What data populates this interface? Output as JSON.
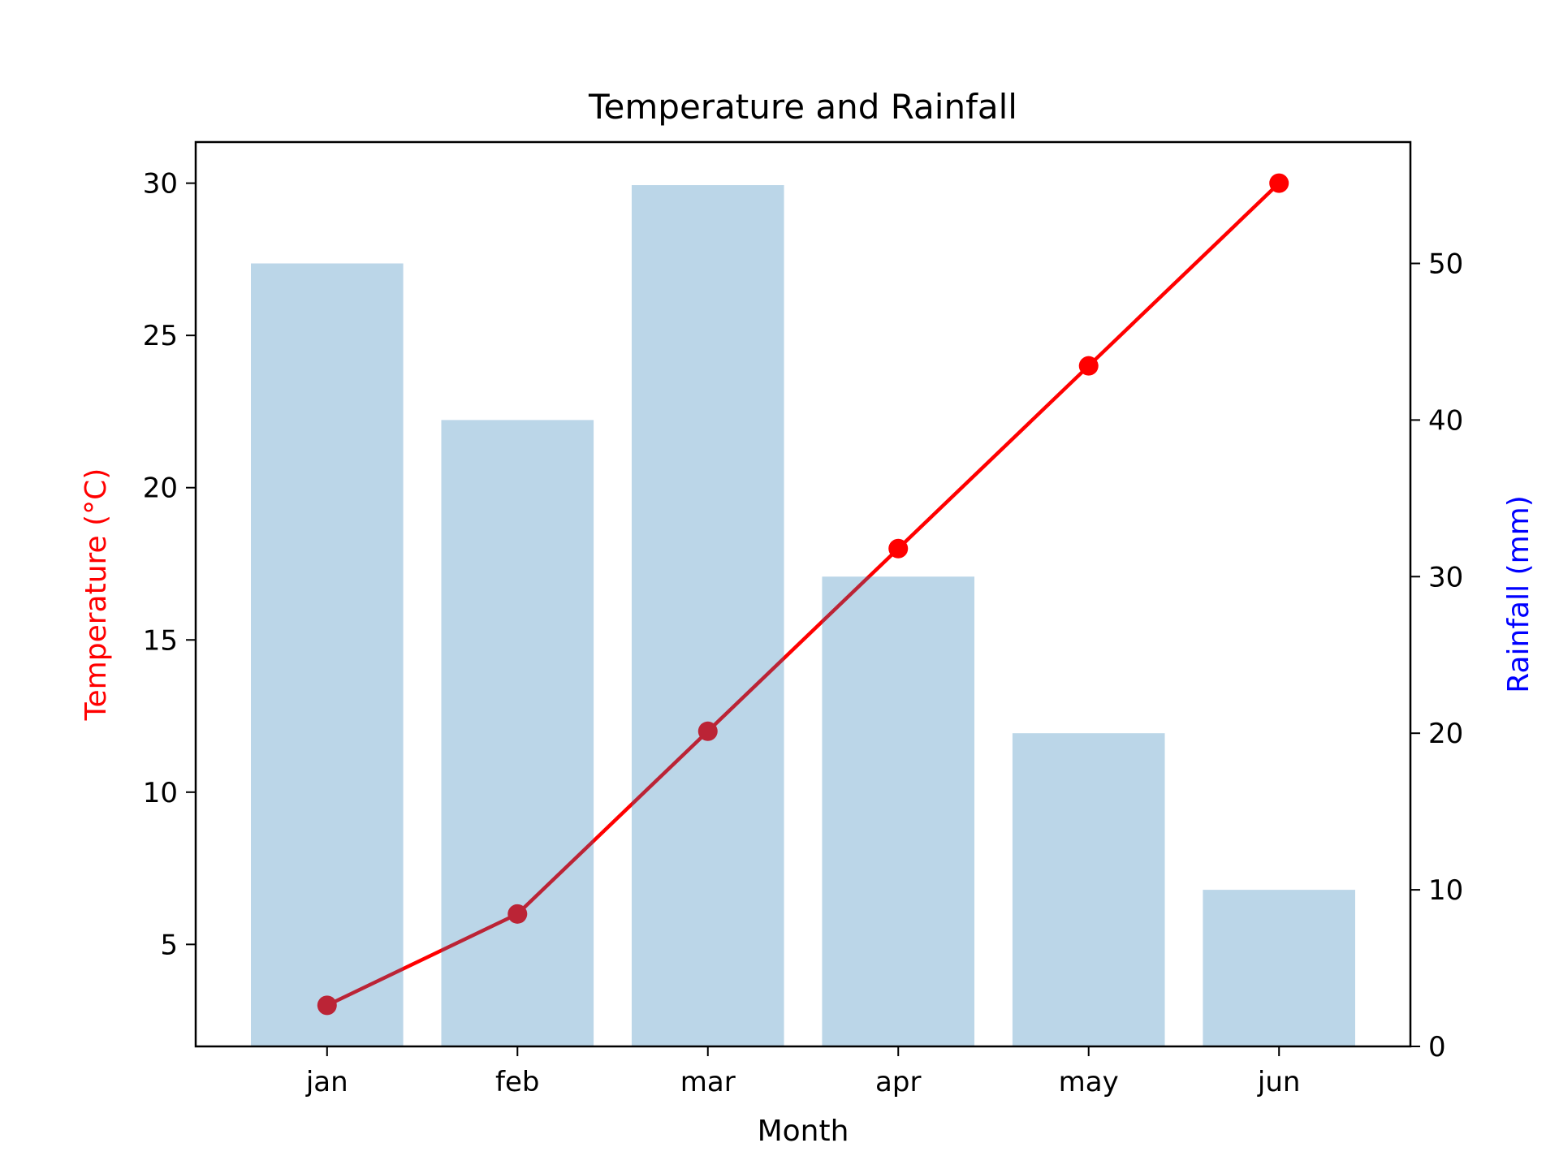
{
  "chart_data": {
    "type": "bar+line",
    "title": "Temperature and Rainfall",
    "xlabel": "Month",
    "categories": [
      "jan",
      "feb",
      "mar",
      "apr",
      "may",
      "jun"
    ],
    "xlim": [
      -0.69,
      5.69
    ],
    "series": [
      {
        "name": "Temperature",
        "type": "line",
        "axis": "left",
        "values": [
          3,
          6,
          12,
          18,
          24,
          30
        ],
        "color": "#ff0000",
        "marker": "circle"
      },
      {
        "name": "Rainfall",
        "type": "bar",
        "axis": "right",
        "values": [
          50,
          40,
          55,
          30,
          20,
          10
        ],
        "color": "#1f77b4",
        "alpha": 0.3
      }
    ],
    "left_axis": {
      "label": "Temperature (°C)",
      "label_color": "#ff0000",
      "ylim": [
        1.65,
        31.35
      ],
      "ticks": [
        5,
        10,
        15,
        20,
        25,
        30
      ],
      "tick_labels": [
        "5",
        "10",
        "15",
        "20",
        "25",
        "30"
      ]
    },
    "right_axis": {
      "label": "Rainfall (mm)",
      "label_color": "#0000ff",
      "ylim": [
        0,
        57.75
      ],
      "ticks": [
        0,
        10,
        20,
        30,
        40,
        50
      ],
      "tick_labels": [
        "0",
        "10",
        "20",
        "30",
        "40",
        "50"
      ]
    },
    "grid": false
  }
}
